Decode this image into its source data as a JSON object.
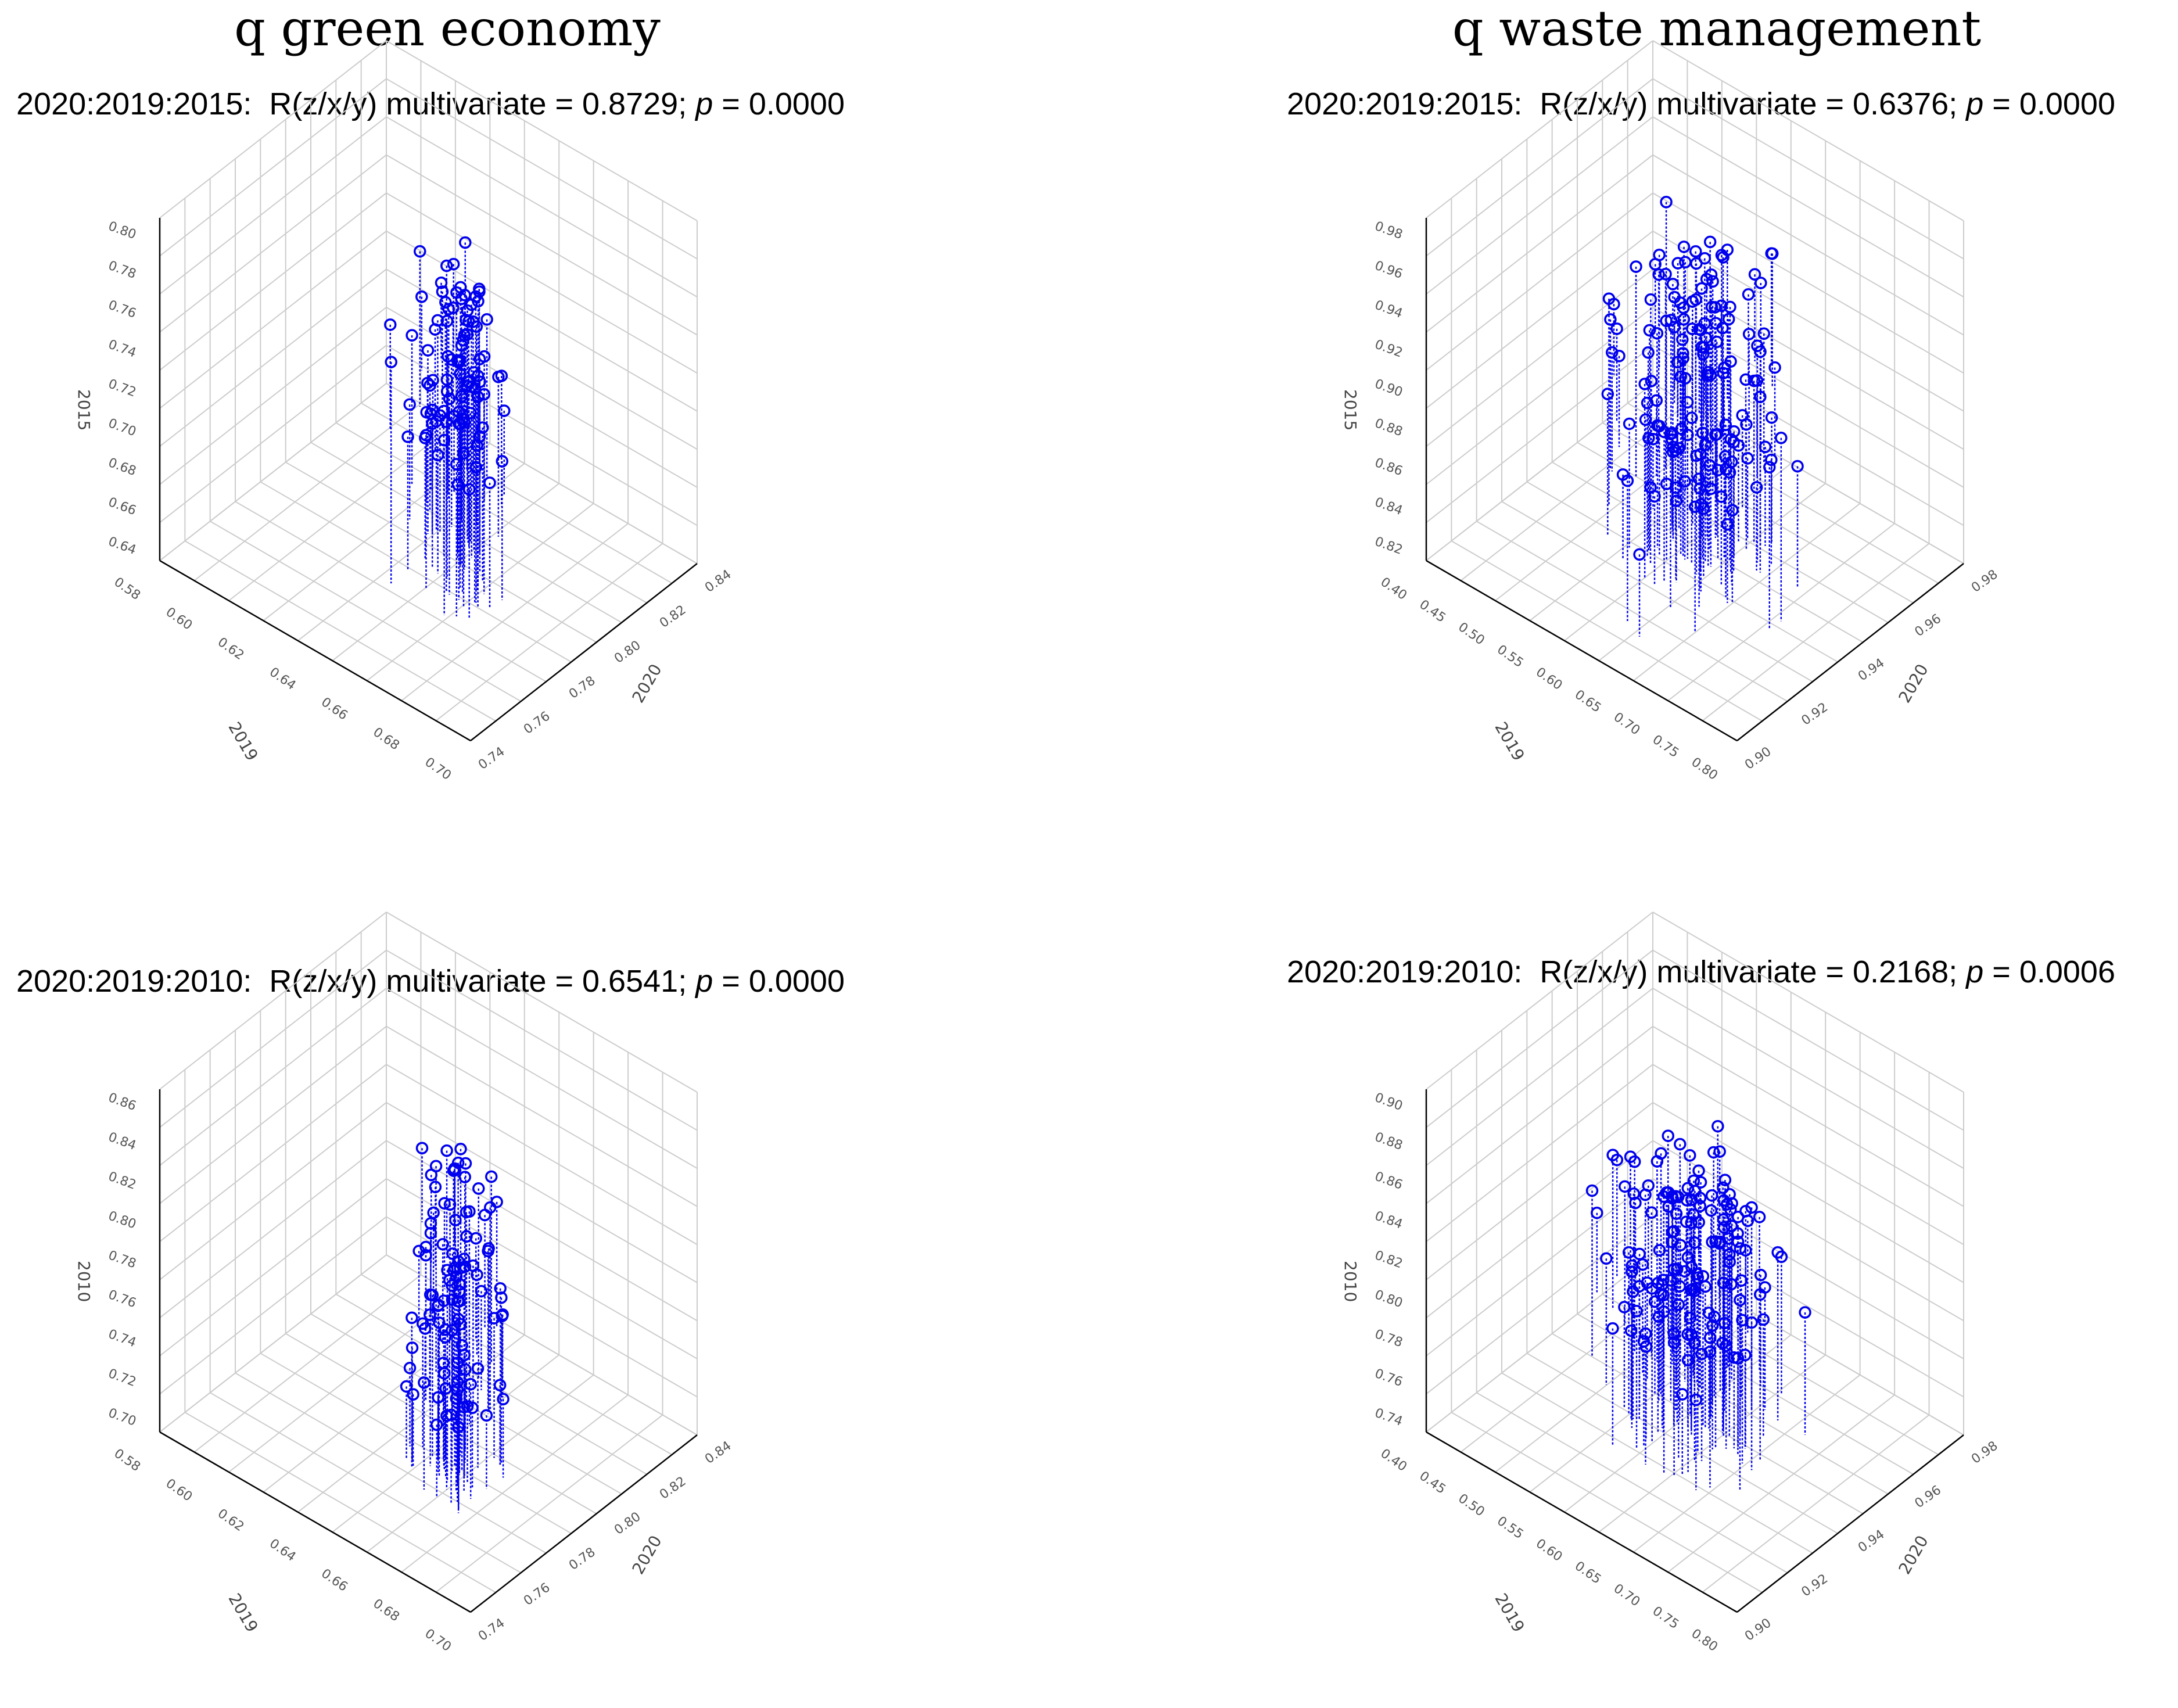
{
  "columns": [
    {
      "title": "q green economy"
    },
    {
      "title": "q waste management"
    }
  ],
  "colors": {
    "series": "#0000ee",
    "grid": "#cccccc"
  },
  "chart_data": [
    {
      "type": "scatter",
      "id": "ge-2015",
      "caption": {
        "years": "2020:2019:2015:",
        "stat": "R(z/x/y) multivariate = 0.8729;",
        "p_label": "p",
        "p_value": "= 0.0000"
      },
      "xlabel": "2019",
      "ylabel": "2020",
      "zlabel": "2015",
      "zticks": [
        "0.80",
        "0.78",
        "0.76",
        "0.74",
        "0.72",
        "0.70",
        "0.68",
        "0.66",
        "0.64"
      ],
      "xticks": [
        "0.58",
        "0.60",
        "0.62",
        "0.64",
        "0.66",
        "0.68",
        "0.70"
      ],
      "yticks": [
        "0.74",
        "0.76",
        "0.78",
        "0.80",
        "0.82",
        "0.84"
      ],
      "seed": 11,
      "n": 95,
      "spread_u": 0.12,
      "spread_v": 0.12,
      "center_u": 0.36,
      "center_v": 0.42,
      "zmin": 0.32,
      "zmax": 0.95
    },
    {
      "type": "scatter",
      "id": "wm-2015",
      "caption": {
        "years": "2020:2019:2015:",
        "stat": "R(z/x/y) multivariate = 0.6376;",
        "p_label": "p",
        "p_value": "= 0.0000"
      },
      "xlabel": "2019",
      "ylabel": "2020",
      "zlabel": "2015",
      "zticks": [
        "0.98",
        "0.96",
        "0.94",
        "0.92",
        "0.90",
        "0.88",
        "0.86",
        "0.84",
        "0.82"
      ],
      "xticks": [
        "0.40",
        "0.45",
        "0.50",
        "0.55",
        "0.60",
        "0.65",
        "0.70",
        "0.75",
        "0.80"
      ],
      "yticks": [
        "0.90",
        "0.92",
        "0.94",
        "0.96",
        "0.98"
      ],
      "seed": 23,
      "n": 150,
      "spread_u": 0.22,
      "spread_v": 0.22,
      "center_u": 0.48,
      "center_v": 0.48,
      "zmin": 0.2,
      "zmax": 0.9
    },
    {
      "type": "scatter",
      "id": "ge-2010",
      "caption": {
        "years": "2020:2019:2010:",
        "stat": "R(z/x/y) multivariate = 0.6541;",
        "p_label": "p",
        "p_value": "= 0.0000"
      },
      "xlabel": "2019",
      "ylabel": "2020",
      "zlabel": "2010",
      "zticks": [
        "0.86",
        "0.84",
        "0.82",
        "0.80",
        "0.78",
        "0.76",
        "0.74",
        "0.72",
        "0.70"
      ],
      "xticks": [
        "0.58",
        "0.60",
        "0.62",
        "0.64",
        "0.66",
        "0.68",
        "0.70"
      ],
      "yticks": [
        "0.74",
        "0.76",
        "0.78",
        "0.80",
        "0.82",
        "0.84"
      ],
      "seed": 37,
      "n": 100,
      "spread_u": 0.12,
      "spread_v": 0.12,
      "center_u": 0.36,
      "center_v": 0.42,
      "zmin": 0.2,
      "zmax": 0.95
    },
    {
      "type": "scatter",
      "id": "wm-2010",
      "caption": {
        "years": "2020:2019:2010:",
        "stat": "R(z/x/y) multivariate = 0.2168;",
        "p_label": "p",
        "p_value": "= 0.0006"
      },
      "xlabel": "2019",
      "ylabel": "2020",
      "zlabel": "2010",
      "zticks": [
        "0.90",
        "0.88",
        "0.86",
        "0.84",
        "0.82",
        "0.80",
        "0.78",
        "0.76",
        "0.74"
      ],
      "xticks": [
        "0.40",
        "0.45",
        "0.50",
        "0.55",
        "0.60",
        "0.65",
        "0.70",
        "0.75",
        "0.80"
      ],
      "yticks": [
        "0.90",
        "0.92",
        "0.94",
        "0.96",
        "0.98"
      ],
      "seed": 51,
      "n": 150,
      "spread_u": 0.22,
      "spread_v": 0.22,
      "center_u": 0.48,
      "center_v": 0.48,
      "zmin": 0.25,
      "zmax": 0.8
    }
  ]
}
